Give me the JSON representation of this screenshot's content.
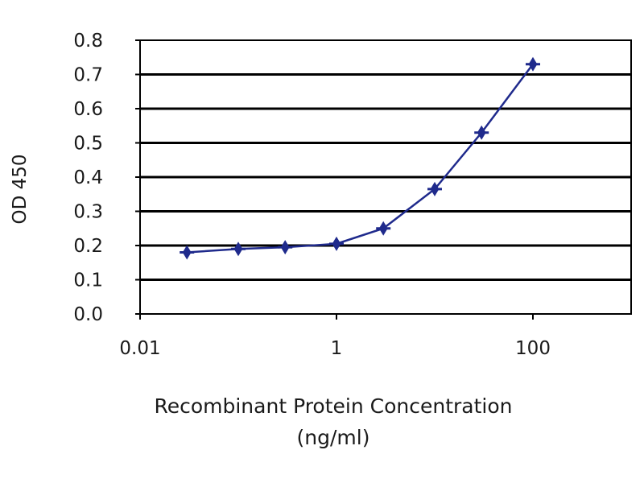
{
  "chart_data": {
    "type": "line",
    "title": "",
    "xlabel_line1": "Recombinant Protein Concentration",
    "xlabel_line2": "(ng/ml)",
    "ylabel": "OD 450",
    "x_scale": "log",
    "xlim": [
      0.01,
      1000
    ],
    "ylim": [
      0.0,
      0.8
    ],
    "x_ticks": [
      0.01,
      1,
      100
    ],
    "x_tick_labels": [
      "0.01",
      "1",
      "100"
    ],
    "y_ticks": [
      0.0,
      0.1,
      0.2,
      0.3,
      0.4,
      0.5,
      0.6,
      0.7,
      0.8
    ],
    "y_tick_labels": [
      "0.0",
      "0.1",
      "0.2",
      "0.3",
      "0.4",
      "0.5",
      "0.6",
      "0.7",
      "0.8"
    ],
    "grid": "horizontal",
    "legend": "none",
    "series": [
      {
        "x": [
          0.03,
          0.1,
          0.3,
          1,
          3,
          10,
          30,
          100
        ],
        "y": [
          0.18,
          0.19,
          0.195,
          0.205,
          0.25,
          0.365,
          0.53,
          0.73
        ]
      }
    ],
    "colors": {
      "series": "#1f2a8c",
      "grid": "#000000",
      "frame": "#000000"
    }
  }
}
